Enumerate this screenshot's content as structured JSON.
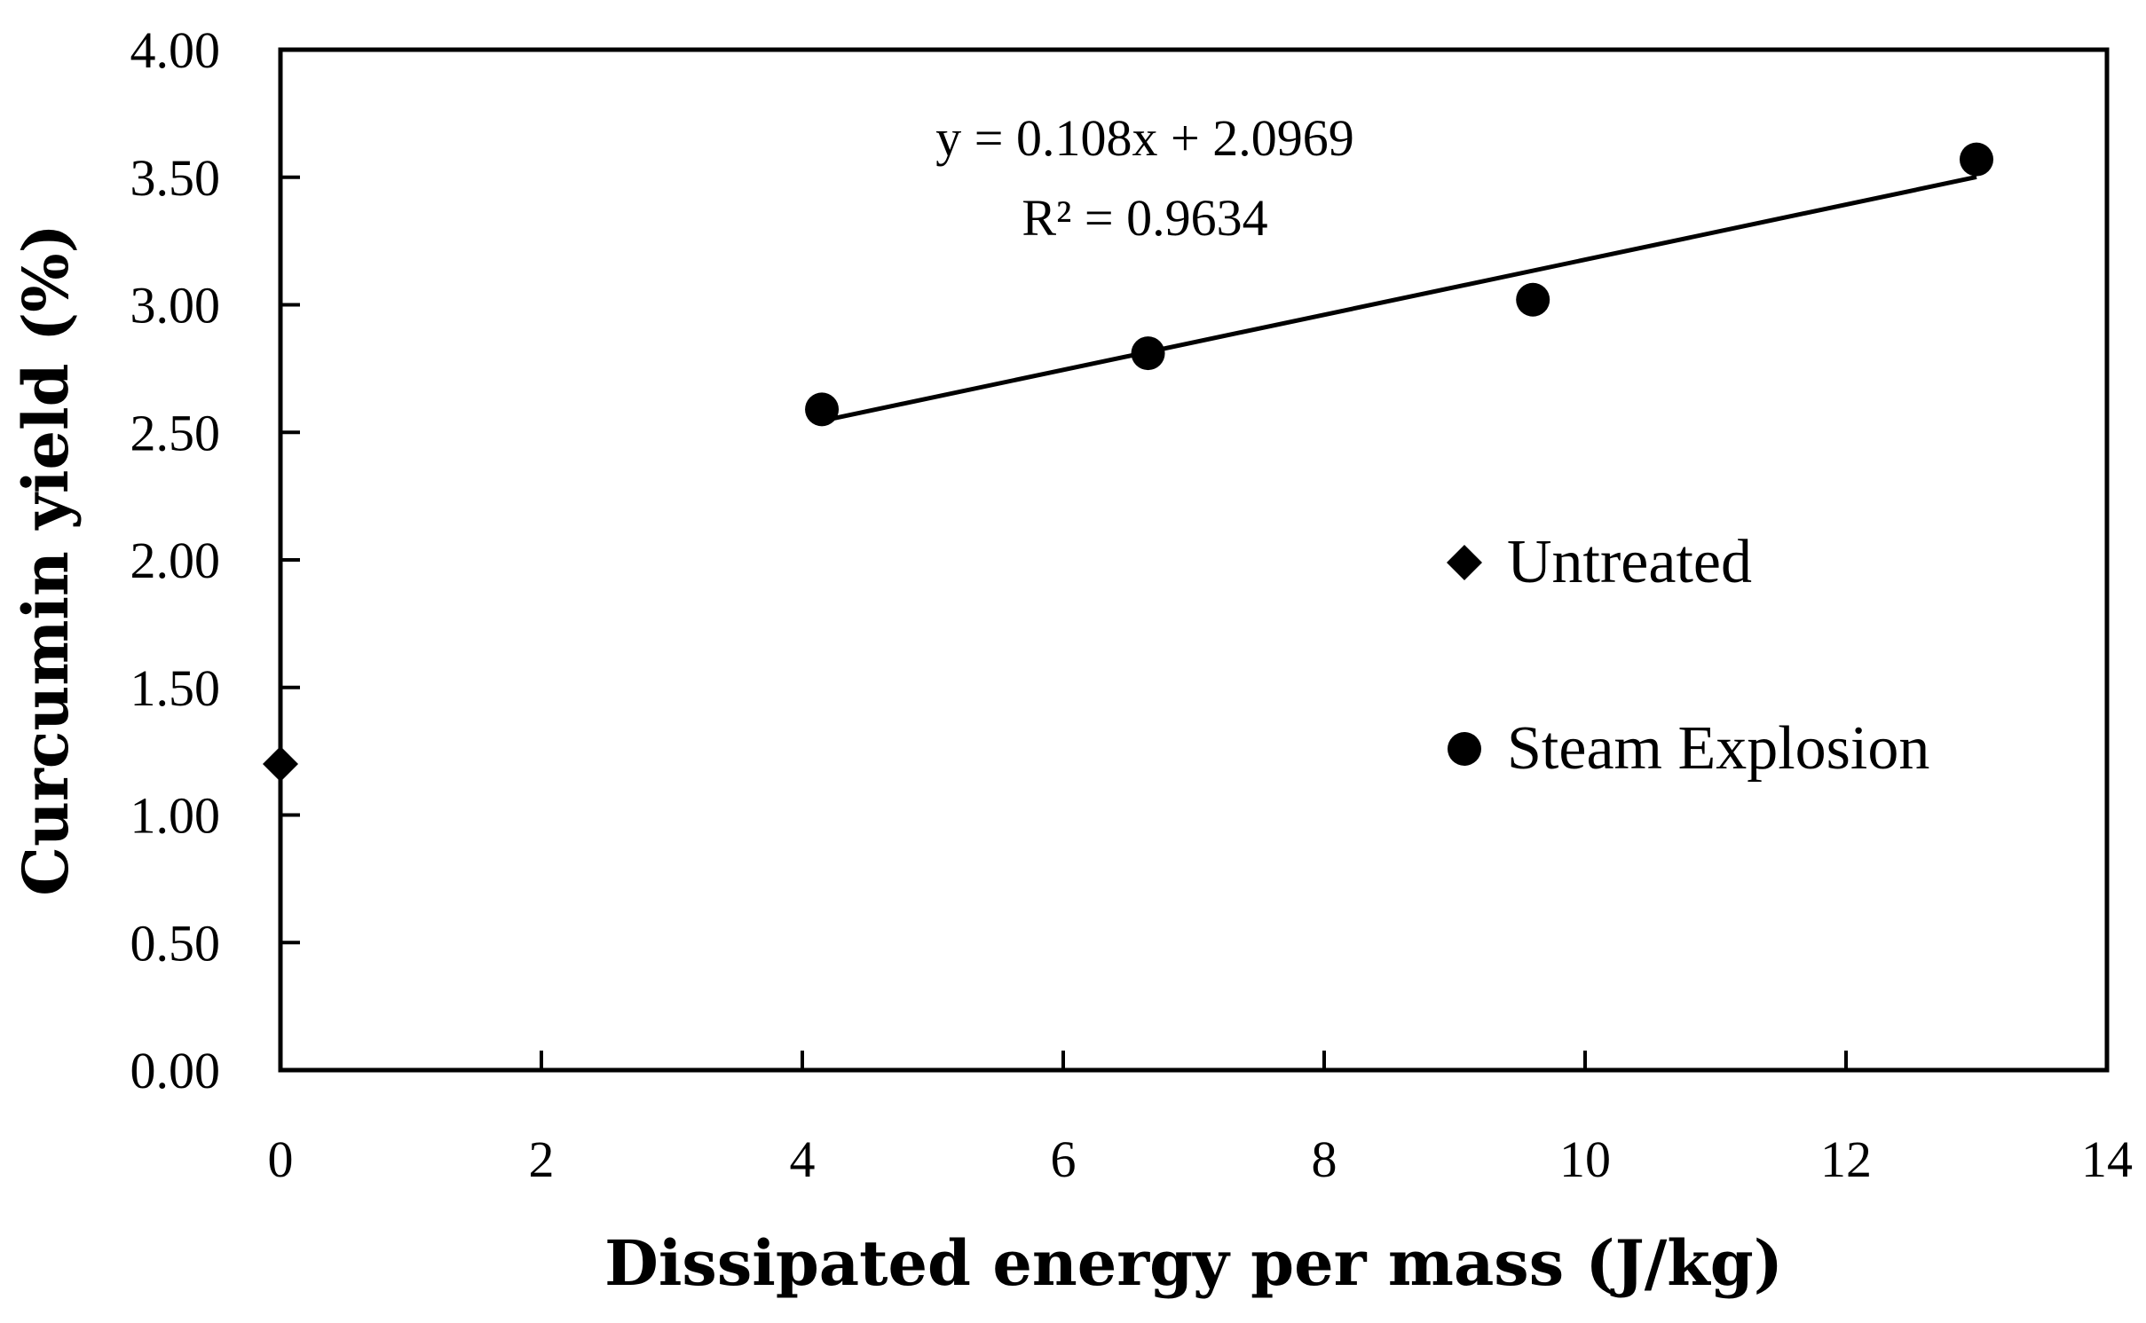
{
  "chart_data": {
    "type": "scatter",
    "title": "",
    "xlabel": "Dissipated energy per mass (J/kg)",
    "ylabel": "Curcumin yield (%)",
    "xlim": [
      0,
      14
    ],
    "ylim": [
      0,
      4
    ],
    "x_ticks": [
      "0",
      "2",
      "4",
      "6",
      "8",
      "10",
      "12",
      "14"
    ],
    "y_ticks": [
      "0.00",
      "0.50",
      "1.00",
      "1.50",
      "2.00",
      "2.50",
      "3.00",
      "3.50",
      "4.00"
    ],
    "grid": false,
    "legend_position": "right",
    "series": [
      {
        "name": "Untreated",
        "marker": "diamond",
        "points": [
          {
            "x": 0,
            "y": 1.2
          }
        ]
      },
      {
        "name": "Steam Explosion",
        "marker": "circle",
        "points": [
          {
            "x": 4.15,
            "y": 2.59
          },
          {
            "x": 6.65,
            "y": 2.81
          },
          {
            "x": 9.6,
            "y": 3.02
          },
          {
            "x": 13.0,
            "y": 3.57
          }
        ]
      }
    ],
    "trendline": {
      "series": "Steam Explosion",
      "slope": 0.108,
      "intercept": 2.0969,
      "x_range": [
        4.15,
        13.0
      ],
      "equation": "y = 0.108x + 2.0969",
      "r_squared": "R² = 0.9634"
    },
    "colors": {
      "axis": "#000000",
      "marker": "#000000",
      "line": "#000000"
    }
  }
}
